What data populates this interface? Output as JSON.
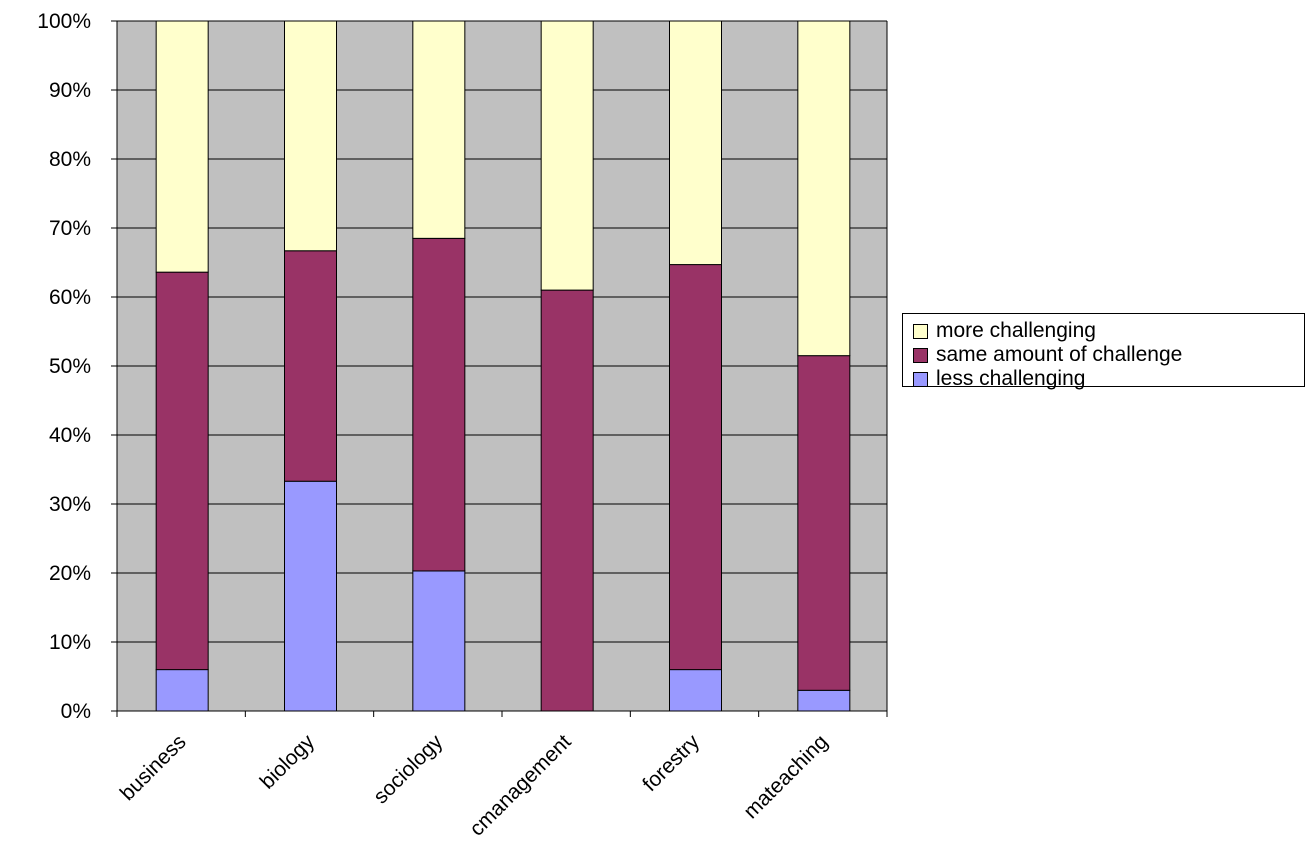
{
  "chart_data": {
    "type": "bar",
    "stacked": true,
    "percent_stacked": true,
    "categories": [
      "business",
      "biology",
      "sociology",
      "cmanagement",
      "forestry",
      "mateaching"
    ],
    "series": [
      {
        "name": "less challenging",
        "color": "#9999ff",
        "values": [
          6,
          33.3,
          20.3,
          0,
          6,
          3
        ]
      },
      {
        "name": "same amount of challenge",
        "color": "#993366",
        "values": [
          57.6,
          33.4,
          48.2,
          61,
          58.7,
          48.5
        ]
      },
      {
        "name": "more challenging",
        "color": "#ffffcc",
        "values": [
          36.4,
          33.3,
          31.5,
          39,
          35.3,
          48.5
        ]
      }
    ],
    "y_ticks": [
      "0%",
      "10%",
      "20%",
      "30%",
      "40%",
      "50%",
      "60%",
      "70%",
      "80%",
      "90%",
      "100%"
    ],
    "ylim": [
      0,
      100
    ],
    "plot_background": "#c0c0c0",
    "grid": true,
    "legend_position": "right",
    "legend_order": [
      "more challenging",
      "same amount of challenge",
      "less challenging"
    ]
  }
}
